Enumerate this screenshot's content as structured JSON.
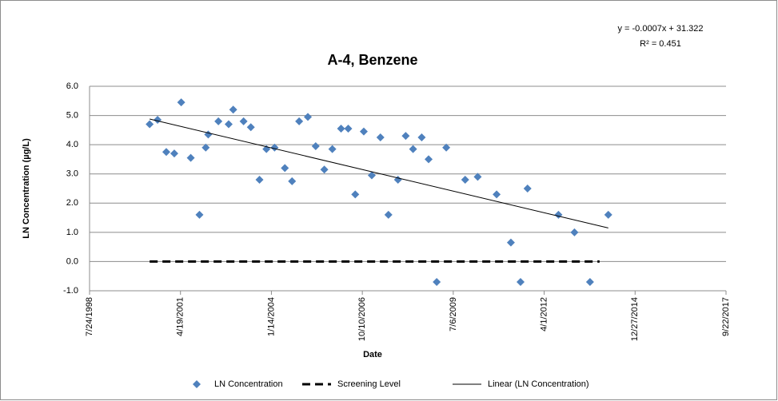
{
  "chart_data": {
    "type": "scatter",
    "title": "A-4, Benzene",
    "annotations": [
      "y = -0.0007x + 31.322",
      "R² = 0.451"
    ],
    "x_label": "Date",
    "y_label": "LN Concentration (µg/L)",
    "xlim": [
      "1998-07-24",
      "2017-09-22"
    ],
    "xticks": [
      {
        "value": "1998-07-24",
        "label": "7/24/1998"
      },
      {
        "value": "2001-04-19",
        "label": "4/19/2001"
      },
      {
        "value": "2004-01-14",
        "label": "1/14/2004"
      },
      {
        "value": "2006-10-10",
        "label": "10/10/2006"
      },
      {
        "value": "2009-07-06",
        "label": "7/6/2009"
      },
      {
        "value": "2012-04-01",
        "label": "4/1/2012"
      },
      {
        "value": "2014-12-27",
        "label": "12/27/2014"
      },
      {
        "value": "2017-09-22",
        "label": "9/22/2017"
      }
    ],
    "ylim": [
      -1,
      6
    ],
    "yticks": [
      {
        "value": -1,
        "label": "-1.0"
      },
      {
        "value": 0,
        "label": "0.0"
      },
      {
        "value": 1,
        "label": "1.0"
      },
      {
        "value": 2,
        "label": "2.0"
      },
      {
        "value": 3,
        "label": "3.0"
      },
      {
        "value": 4,
        "label": "4.0"
      },
      {
        "value": 5,
        "label": "5.0"
      },
      {
        "value": 6,
        "label": "6.0"
      }
    ],
    "grid": true,
    "legend": "bottom",
    "series": [
      {
        "name": "LN Concentration",
        "color": "#4f81bd",
        "style": "diamond",
        "x": [
          "2000-05-15",
          "2000-08-10",
          "2000-11-14",
          "2001-02-10",
          "2001-04-27",
          "2001-08-10",
          "2001-11-14",
          "2002-01-22",
          "2002-02-18",
          "2002-06-10",
          "2002-10-01",
          "2002-11-20",
          "2003-03-14",
          "2003-06-02",
          "2003-09-05",
          "2003-11-20",
          "2004-02-18",
          "2004-06-10",
          "2004-08-28",
          "2004-11-14",
          "2005-02-18",
          "2005-05-15",
          "2005-08-18",
          "2005-11-14",
          "2006-02-18",
          "2006-05-08",
          "2006-07-24",
          "2006-10-26",
          "2007-01-22",
          "2007-04-27",
          "2007-07-24",
          "2007-11-06",
          "2008-01-30",
          "2008-04-20",
          "2008-07-24",
          "2008-10-08",
          "2009-01-05",
          "2009-04-20",
          "2009-11-14",
          "2010-04-01",
          "2010-10-26",
          "2011-04-01",
          "2011-07-16",
          "2011-10-01",
          "2012-09-05",
          "2013-02-28",
          "2013-08-18",
          "2014-03-07"
        ],
        "values": [
          4.7,
          4.85,
          3.75,
          3.7,
          5.45,
          3.55,
          1.6,
          3.9,
          4.35,
          4.8,
          4.7,
          5.2,
          4.8,
          4.6,
          2.8,
          3.85,
          3.9,
          3.2,
          2.75,
          4.8,
          4.95,
          3.95,
          3.15,
          3.85,
          4.55,
          4.55,
          2.3,
          4.45,
          2.95,
          4.25,
          1.6,
          2.8,
          4.3,
          3.85,
          4.25,
          3.5,
          -0.7,
          3.9,
          2.8,
          2.9,
          2.3,
          0.65,
          -0.7,
          2.5,
          1.6,
          1.0,
          -0.7,
          1.6
        ]
      },
      {
        "name": "Screening Level",
        "color": "#000000",
        "style": "dashed",
        "x": [
          "2000-05-15",
          "2013-12-01"
        ],
        "values": [
          0,
          0
        ]
      },
      {
        "name": "Linear (LN Concentration)",
        "color": "#000000",
        "style": "solid",
        "x": [
          "2000-05-15",
          "2014-03-07"
        ],
        "values": [
          4.88,
          1.15
        ]
      }
    ]
  }
}
